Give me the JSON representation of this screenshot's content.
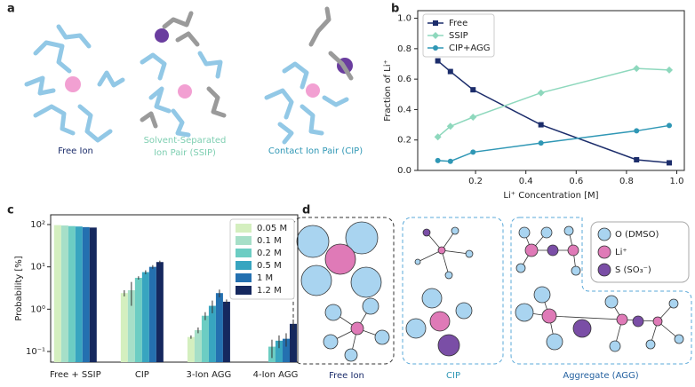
{
  "panel_labels": [
    "a",
    "b",
    "c",
    "d"
  ],
  "panel_a": {
    "free_ion": "Free Ion",
    "ssip": [
      "Solvent-Separated",
      "Ion Pair (SSIP)"
    ],
    "cip": "Contact Ion Pair (CIP)"
  },
  "panel_d": {
    "free_ion": "Free Ion",
    "cip": "CIP",
    "aggregate": "Aggregate (AGG)",
    "legend": [
      "O (DMSO)",
      "Li⁺",
      "S (SO₃⁻)"
    ]
  },
  "chart_data": [
    {
      "type": "line",
      "xlabel": "Li⁺ Concentration [M]",
      "ylabel": "Fraction of Li⁺",
      "x": [
        0.05,
        0.1,
        0.19,
        0.46,
        0.84,
        0.97
      ],
      "series": [
        {
          "name": "Free",
          "color": "#1c2d6b",
          "marker": "square",
          "values": [
            0.72,
            0.65,
            0.53,
            0.3,
            0.07,
            0.05
          ]
        },
        {
          "name": "SSIP",
          "color": "#8ed8bd",
          "marker": "diamond",
          "values": [
            0.22,
            0.29,
            0.35,
            0.51,
            0.67,
            0.66
          ]
        },
        {
          "name": "CIP+AGG",
          "color": "#2f97b5",
          "marker": "circle",
          "values": [
            0.065,
            0.06,
            0.12,
            0.18,
            0.26,
            0.295
          ]
        }
      ],
      "xlim": [
        -0.03,
        1.03
      ],
      "ylim": [
        0,
        1.05
      ],
      "xticks": [
        {
          "value": 0.2,
          "label": "0.2"
        },
        {
          "value": 0.4,
          "label": "0.4"
        },
        {
          "value": 0.6,
          "label": "0.6"
        },
        {
          "value": 0.8,
          "label": "0.8"
        },
        {
          "value": 1,
          "label": "1.0"
        }
      ],
      "yticks": [
        {
          "value": 0,
          "label": "0.0"
        },
        {
          "value": 0.2,
          "label": "0.2"
        },
        {
          "value": 0.4,
          "label": "0.4"
        },
        {
          "value": 0.6,
          "label": "0.6"
        },
        {
          "value": 0.8,
          "label": "0.8"
        },
        {
          "value": 1,
          "label": "1.0"
        }
      ],
      "legend": "upper left"
    },
    {
      "type": "bar",
      "ylabel": "Probability [%]",
      "log_scale": true,
      "categories": [
        "Free + SSIP",
        "CIP",
        "3-Ion AGG",
        "4-Ion AGG"
      ],
      "series": [
        {
          "name": "0.05 M",
          "color": "#d4efbf",
          "values": [
            97,
            2.4,
            0.22,
            null
          ],
          "errors": [
            null,
            0.4,
            0.02,
            null
          ]
        },
        {
          "name": "0.1 M",
          "color": "#a6dfc8",
          "values": [
            95,
            2.8,
            0.32,
            null
          ],
          "errors": [
            null,
            1.6,
            0.05,
            null
          ]
        },
        {
          "name": "0.2 M",
          "color": "#6ccdc3",
          "values": [
            92,
            5.5,
            0.7,
            0.13
          ],
          "errors": [
            null,
            0.5,
            0.15,
            0.06
          ]
        },
        {
          "name": "0.5 M",
          "color": "#38a5c0",
          "values": [
            90,
            7.5,
            1.2,
            0.18
          ],
          "errors": [
            null,
            0.8,
            0.4,
            0.06
          ]
        },
        {
          "name": "1 M",
          "color": "#2470b0",
          "values": [
            87,
            10,
            2.4,
            0.2
          ],
          "errors": [
            null,
            1,
            0.5,
            0.07
          ]
        },
        {
          "name": "1.2 M",
          "color": "#15285e",
          "values": [
            85,
            13,
            1.5,
            0.45
          ],
          "errors": [
            null,
            1,
            0.2,
            0.12
          ]
        }
      ],
      "ylim": [
        0.056,
        170
      ],
      "yticks": [
        {
          "value": 0.1,
          "label": "10⁻¹"
        },
        {
          "value": 1,
          "label": "10⁰"
        },
        {
          "value": 10,
          "label": "10¹"
        },
        {
          "value": 100,
          "label": "10²"
        }
      ],
      "legend": "upper right"
    }
  ]
}
